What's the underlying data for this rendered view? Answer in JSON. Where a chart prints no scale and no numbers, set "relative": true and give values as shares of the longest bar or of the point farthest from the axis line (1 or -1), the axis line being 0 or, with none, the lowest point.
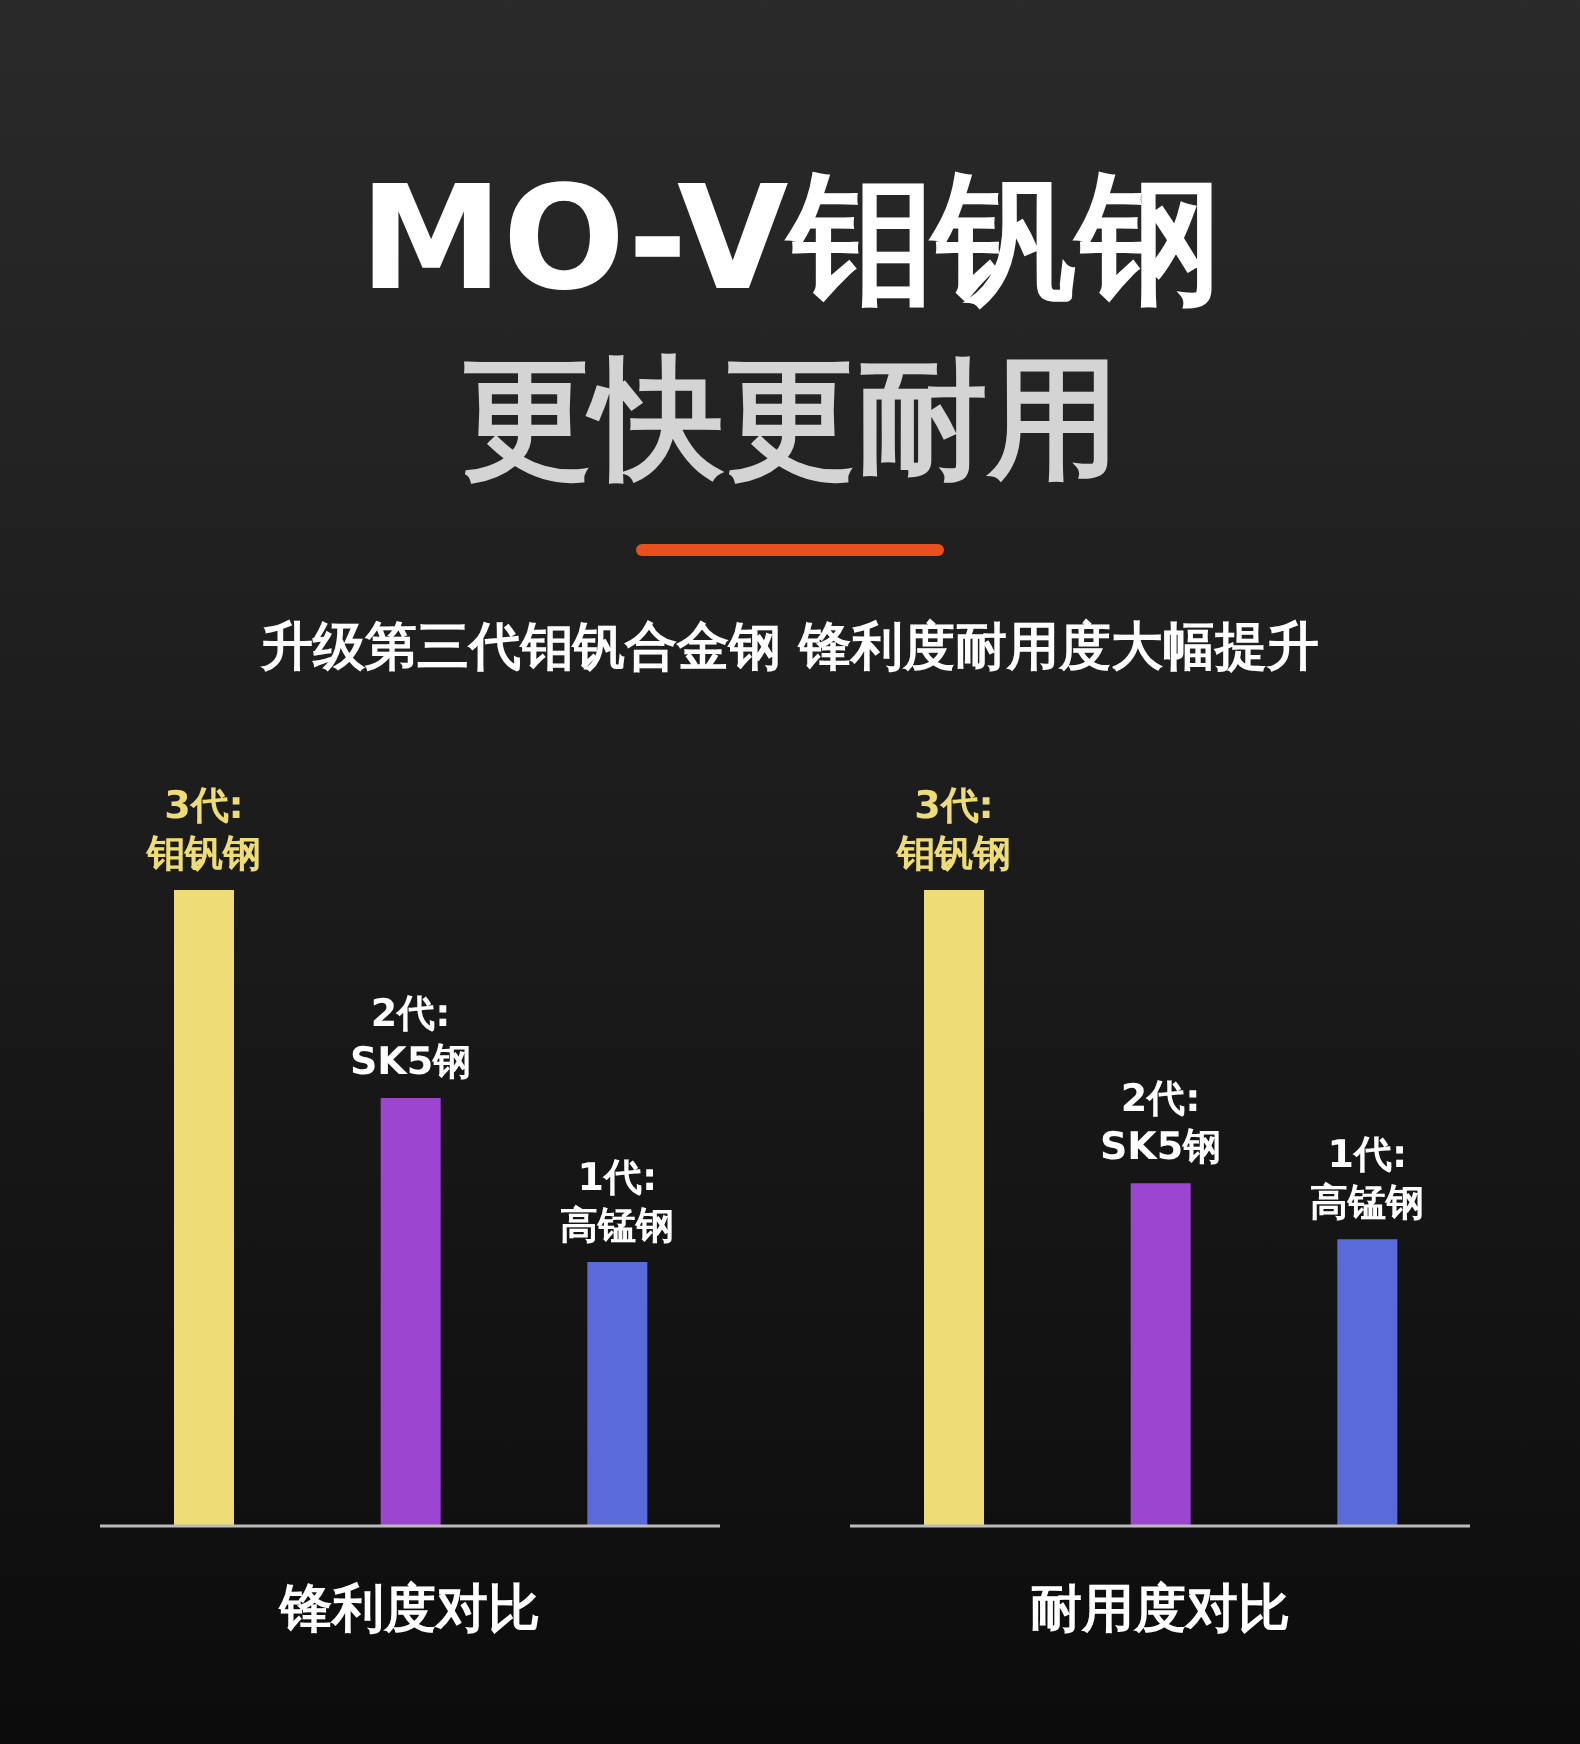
{
  "chart_data": [
    {
      "type": "bar",
      "title": "MO-V钼钒钢",
      "subtitle": "更快更耐用",
      "annotations": [
        "升级第三代钼钒合金钢 锋利度耐用度大幅提升"
      ],
      "xlabel": "锋利度对比",
      "relative": true,
      "categories": [
        "3代: 钼钒钢",
        "2代: SK5钢",
        "1代: 高锰钢"
      ],
      "values": [
        1,
        0.673,
        0.415
      ],
      "colors": [
        "#eedd77",
        "#9b45d0",
        "#5a6ad8"
      ]
    },
    {
      "type": "bar",
      "xlabel": "耐用度对比",
      "relative": true,
      "categories": [
        "3代: 钼钒钢",
        "2代: SK5钢",
        "1代: 高锰钢"
      ],
      "values": [
        1,
        0.539,
        0.451
      ],
      "colors": [
        "#eedd77",
        "#9b45d0",
        "#5a6ad8"
      ]
    }
  ]
}
